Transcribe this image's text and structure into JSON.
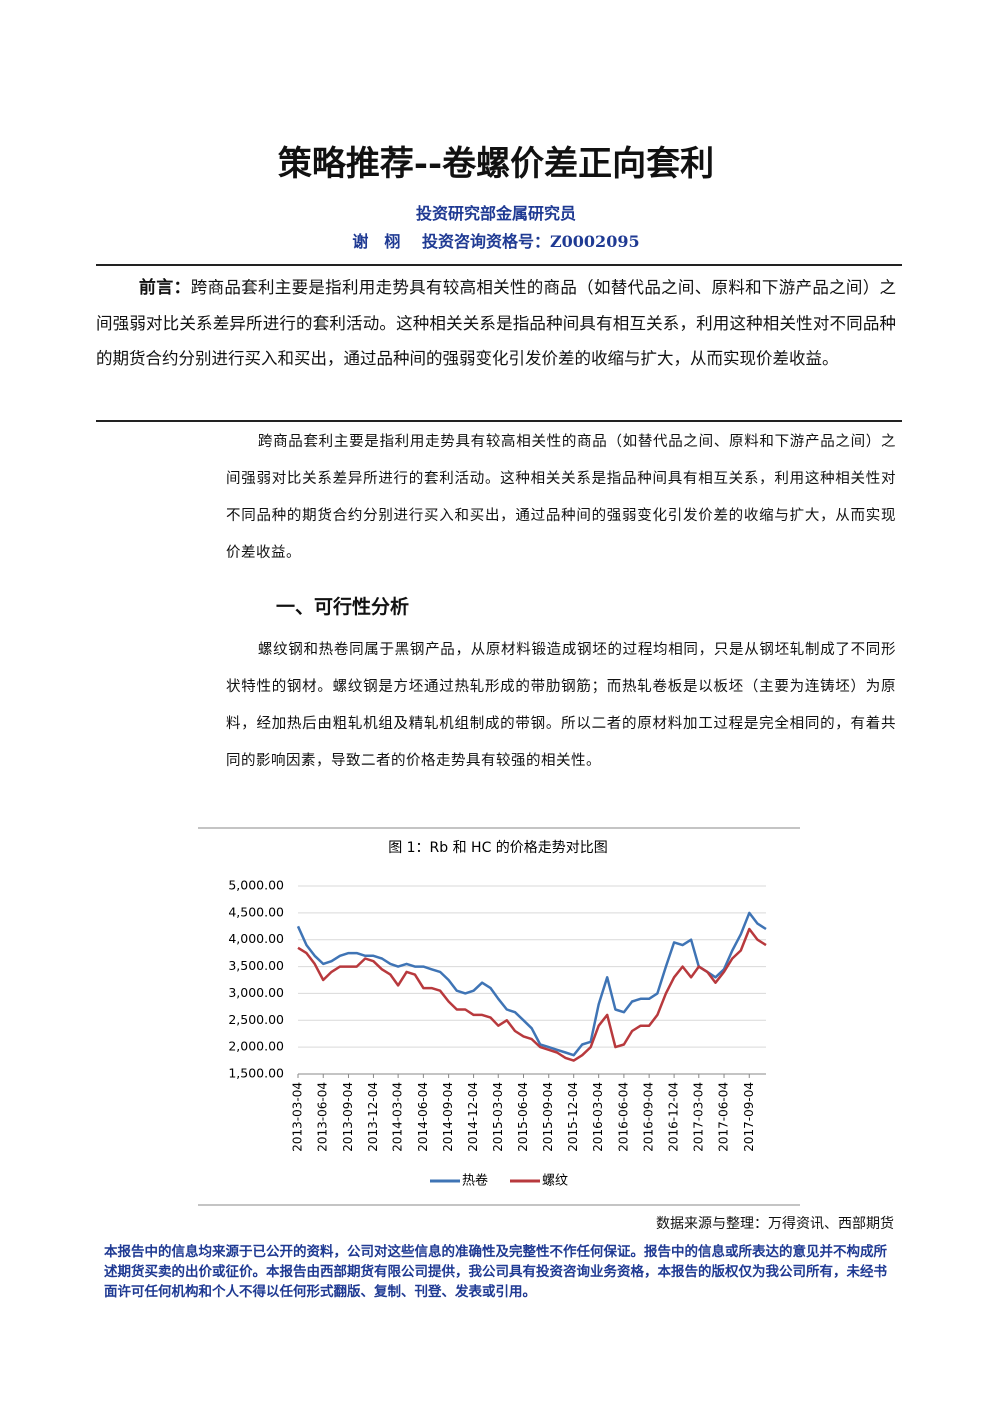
{
  "title": "策略推荐--卷螺价差正向套利",
  "author": {
    "dept": "投资研究部金属研究员",
    "line": "谢　栩　 投资咨询资格号：Z0002095"
  },
  "preface": {
    "label": "前言：",
    "text": "跨商品套利主要是指利用走势具有较高相关性的商品（如替代品之间、原料和下游产品之间）之间强弱对比关系差异所进行的套利活动。这种相关关系是指品种间具有相互关系，利用这种相关性对不同品种的期货合约分别进行买入和买出，通过品种间的强弱变化引发价差的收缩与扩大，从而实现价差收益。"
  },
  "intro": "跨商品套利主要是指利用走势具有较高相关性的商品（如替代品之间、原料和下游产品之间）之间强弱对比关系差异所进行的套利活动。这种相关关系是指品种间具有相互关系，利用这种相关性对不同品种的期货合约分别进行买入和买出，通过品种间的强弱变化引发价差的收缩与扩大，从而实现价差收益。",
  "section": {
    "heading": "一、可行性分析",
    "text": "螺纹钢和热卷同属于黑钢产品，从原材料锻造成钢坯的过程均相同，只是从钢坯轧制成了不同形状特性的钢材。螺纹钢是方坯通过热轧形成的带肋钢筋；而热轧卷板是以板坯（主要为连铸坯）为原料，经加热后由粗轧机组及精轧机组制成的带钢。所以二者的原材料加工过程是完全相同的，有着共同的影响因素，导致二者的价格走势具有较强的相关性。"
  },
  "chart_data": {
    "type": "line",
    "title": "图 1：Rb 和 HC 的价格走势对比图",
    "x": [
      "2013-03-04",
      "2013-04-04",
      "2013-05-04",
      "2013-06-04",
      "2013-07-04",
      "2013-08-04",
      "2013-09-04",
      "2013-10-04",
      "2013-11-04",
      "2013-12-04",
      "2014-01-04",
      "2014-02-04",
      "2014-03-04",
      "2014-04-04",
      "2014-05-04",
      "2014-06-04",
      "2014-07-04",
      "2014-08-04",
      "2014-09-04",
      "2014-10-04",
      "2014-11-04",
      "2014-12-04",
      "2015-01-04",
      "2015-02-04",
      "2015-03-04",
      "2015-04-04",
      "2015-05-04",
      "2015-06-04",
      "2015-07-04",
      "2015-08-04",
      "2015-09-04",
      "2015-10-04",
      "2015-11-04",
      "2015-12-04",
      "2016-01-04",
      "2016-02-04",
      "2016-03-04",
      "2016-04-04",
      "2016-05-04",
      "2016-06-04",
      "2016-07-04",
      "2016-08-04",
      "2016-09-04",
      "2016-10-04",
      "2016-11-04",
      "2016-12-04",
      "2017-01-04",
      "2017-02-04",
      "2017-03-04",
      "2017-04-04",
      "2017-05-04",
      "2017-06-04",
      "2017-07-04",
      "2017-08-04",
      "2017-09-04",
      "2017-10-04",
      "2017-11-04"
    ],
    "series": [
      {
        "name": "热卷",
        "color": "#3f74b5",
        "values": [
          4250,
          3900,
          3700,
          3550,
          3600,
          3700,
          3750,
          3750,
          3700,
          3700,
          3650,
          3550,
          3500,
          3550,
          3500,
          3500,
          3450,
          3400,
          3250,
          3050,
          3000,
          3050,
          3200,
          3100,
          2900,
          2700,
          2650,
          2500,
          2350,
          2050,
          2000,
          1950,
          1900,
          1850,
          2050,
          2100,
          2800,
          3300,
          2700,
          2650,
          2850,
          2900,
          2900,
          3000,
          3500,
          3950,
          3900,
          4000,
          3500,
          3400,
          3300,
          3450,
          3800,
          4100,
          4500,
          4300,
          4200
        ]
      },
      {
        "name": "螺纹",
        "color": "#b8393d",
        "values": [
          3850,
          3750,
          3550,
          3250,
          3400,
          3500,
          3500,
          3500,
          3650,
          3600,
          3450,
          3350,
          3150,
          3400,
          3350,
          3100,
          3100,
          3050,
          2850,
          2700,
          2700,
          2600,
          2600,
          2550,
          2400,
          2500,
          2300,
          2200,
          2150,
          2000,
          1950,
          1900,
          1800,
          1750,
          1850,
          2000,
          2400,
          2600,
          2000,
          2050,
          2300,
          2400,
          2400,
          2600,
          3000,
          3300,
          3500,
          3300,
          3500,
          3400,
          3200,
          3400,
          3650,
          3800,
          4200,
          4000,
          3900
        ]
      }
    ],
    "xlim": [
      "2013-03-04",
      "2017-11-04"
    ],
    "xticks": [
      "2013-03-04",
      "2013-06-04",
      "2013-09-04",
      "2013-12-04",
      "2014-03-04",
      "2014-06-04",
      "2014-09-04",
      "2014-12-04",
      "2015-03-04",
      "2015-06-04",
      "2015-09-04",
      "2015-12-04",
      "2016-03-04",
      "2016-06-04",
      "2016-09-04",
      "2016-12-04",
      "2017-03-04",
      "2017-06-04",
      "2017-09-04"
    ],
    "ylim": [
      1500,
      5000
    ],
    "yticks": [
      {
        "value": 1500,
        "label": "1,500.00"
      },
      {
        "value": 2000,
        "label": "2,000.00"
      },
      {
        "value": 2500,
        "label": "2,500.00"
      },
      {
        "value": 3000,
        "label": "3,000.00"
      },
      {
        "value": 3500,
        "label": "3,500.00"
      },
      {
        "value": 4000,
        "label": "4,000.00"
      },
      {
        "value": 4500,
        "label": "4,500.00"
      },
      {
        "value": 5000,
        "label": "5,000.00"
      }
    ],
    "grid": true,
    "legend": "bottom"
  },
  "source": "数据来源与整理：万得资讯、西部期货",
  "disclaimer": "本报告中的信息均来源于已公开的资料，公司对这些信息的准确性及完整性不作任何保证。报告中的信息或所表达的意见并不构成所述期货买卖的出价或征价。本报告由西部期货有限公司提供，我公司具有投资咨询业务资格，本报告的版权仅为我公司所有，未经书面许可任何机构和个人不得以任何形式翻版、复制、刊登、发表或引用。"
}
